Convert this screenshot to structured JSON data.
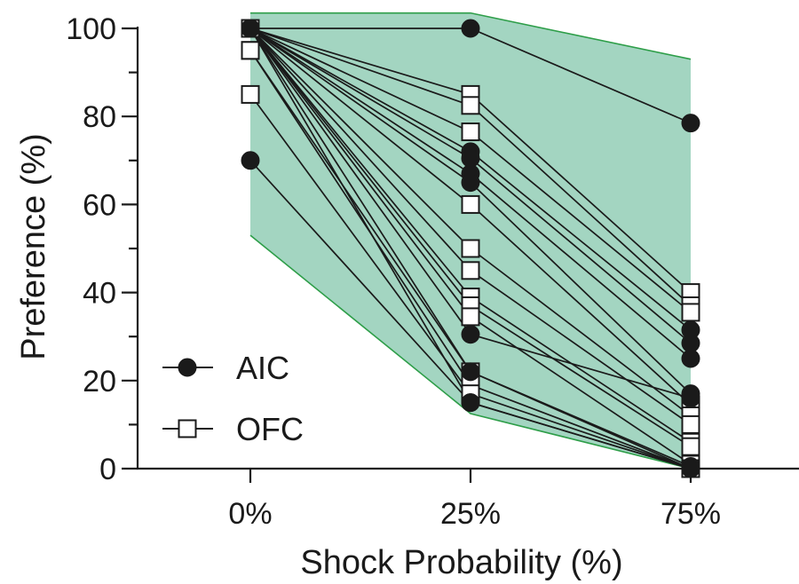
{
  "chart_data": {
    "type": "scatter",
    "title": "",
    "xlabel": "Shock Probability (%)",
    "ylabel": "Preference (%)",
    "categories": [
      "0%",
      "25%",
      "75%"
    ],
    "ylim": [
      0,
      100
    ],
    "yticks": [
      0,
      20,
      40,
      60,
      80,
      100
    ],
    "grid": false,
    "legend_position": "bottom-left",
    "colors": {
      "band_fill": "#a3d5c1",
      "band_edge": "#2e9e49",
      "line": "#1a1a1a",
      "marker": "#1a1a1a"
    },
    "band": {
      "upper": [
        103.5,
        103.5,
        93.0
      ],
      "lower": [
        53.0,
        12.5,
        0.0
      ]
    },
    "series": [
      {
        "name": "AIC",
        "marker": "filled-circle",
        "subjects": [
          [
            100,
            100,
            78.5
          ],
          [
            100,
            72,
            31.5
          ],
          [
            100,
            70.5,
            28.5
          ],
          [
            100,
            67,
            25
          ],
          [
            100,
            65,
            17
          ],
          [
            100,
            30.5,
            16
          ],
          [
            100,
            22,
            0.5
          ],
          [
            100,
            15,
            0
          ],
          [
            70,
            15,
            0
          ]
        ]
      },
      {
        "name": "OFC",
        "marker": "open-square",
        "subjects": [
          [
            100,
            85,
            40
          ],
          [
            100,
            82.5,
            37
          ],
          [
            100,
            76.5,
            35.5
          ],
          [
            100,
            60,
            14.5
          ],
          [
            100,
            50,
            12
          ],
          [
            100,
            45,
            10
          ],
          [
            100,
            39,
            6
          ],
          [
            100,
            37,
            5
          ],
          [
            100,
            34.5,
            1
          ],
          [
            95,
            22,
            0
          ],
          [
            95,
            19,
            0
          ],
          [
            85,
            17,
            0
          ]
        ]
      }
    ]
  }
}
